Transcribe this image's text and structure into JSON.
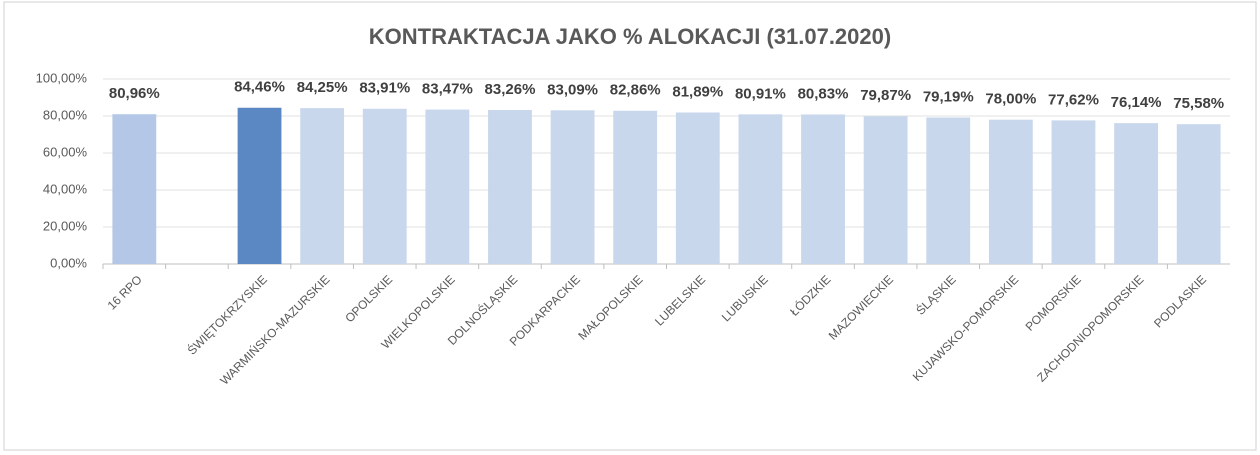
{
  "chart_data": {
    "type": "bar",
    "title": "KONTRAKTACJA  JAKO % ALOKACJI  (31.07.2020)",
    "categories": [
      "16 RPO",
      null,
      "ŚWIĘTOKRZYSKIE",
      "WARMIŃSKO-MAZURSKIE",
      "OPOLSKIE",
      "WIELKOPOLSKIE",
      "DOLNOŚLĄSKIE",
      "PODKARPACKIE",
      "MAŁOPOLSKIE",
      "LUBELSKIE",
      "LUBUSKIE",
      "ŁÓDZKIE",
      "MAZOWIECKIE",
      "ŚLĄSKIE",
      "KUJAWSKO-POMORSKIE",
      "POMORSKIE",
      "ZACHODNIOPOMORSKIE",
      "PODLASKIE"
    ],
    "values": [
      80.96,
      null,
      84.46,
      84.25,
      83.91,
      83.47,
      83.26,
      83.09,
      82.86,
      81.89,
      80.91,
      80.83,
      79.87,
      79.19,
      78.0,
      77.62,
      76.14,
      75.58
    ],
    "value_labels": [
      "80,96%",
      null,
      "84,46%",
      "84,25%",
      "83,91%",
      "83,47%",
      "83,26%",
      "83,09%",
      "82,86%",
      "81,89%",
      "80,91%",
      "80,83%",
      "79,87%",
      "79,19%",
      "78,00%",
      "77,62%",
      "76,14%",
      "75,58%"
    ],
    "colors": [
      "#b4c7e7",
      null,
      "#5b87c2",
      "#c9d7ec",
      "#c9d7ec",
      "#c9d7ec",
      "#c9d7ec",
      "#c9d7ec",
      "#c9d7ec",
      "#c9d7ec",
      "#c9d7ec",
      "#c9d7ec",
      "#c9d7ec",
      "#c9d7ec",
      "#c9d7ec",
      "#c9d7ec",
      "#c9d7ec",
      "#c9d7ec"
    ],
    "ylim": [
      0,
      100
    ],
    "yticks": [
      {
        "value": 0,
        "label": "0,00%"
      },
      {
        "value": 20,
        "label": "20,00%"
      },
      {
        "value": 40,
        "label": "40,00%"
      },
      {
        "value": 60,
        "label": "60,00%"
      },
      {
        "value": 80,
        "label": "80,00%"
      },
      {
        "value": 100,
        "label": "100,00%"
      }
    ],
    "grid": true
  }
}
